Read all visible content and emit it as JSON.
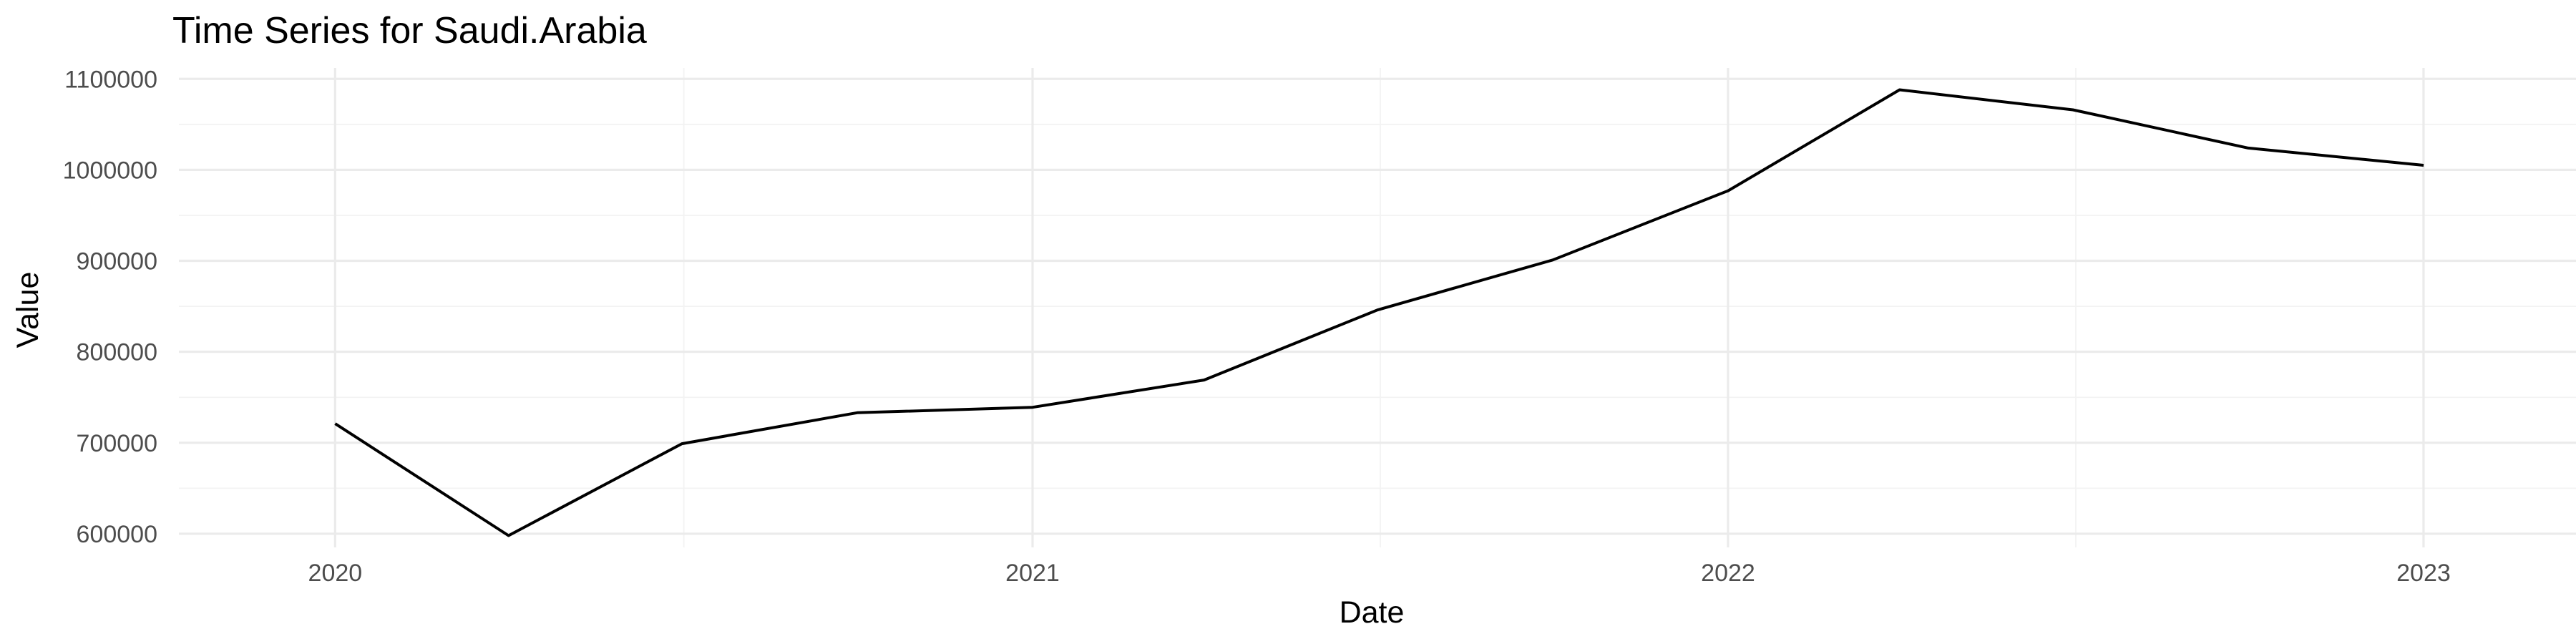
{
  "chart_data": {
    "type": "line",
    "title": "Time Series for Saudi.Arabia",
    "xlabel": "Date",
    "ylabel": "Value",
    "x_ticks": [
      "2020",
      "2021",
      "2022",
      "2023"
    ],
    "y_ticks": [
      600000,
      700000,
      800000,
      900000,
      1000000,
      1100000
    ],
    "xlim": [
      "2019-10-11",
      "2023-03-22"
    ],
    "ylim": [
      585000,
      1112000
    ],
    "grid": true,
    "legend": "none",
    "line_color": "#000000",
    "x": [
      "2020-01-01",
      "2020-04-01",
      "2020-07-01",
      "2020-10-01",
      "2021-01-01",
      "2021-04-01",
      "2021-07-01",
      "2021-10-01",
      "2022-01-01",
      "2022-04-01",
      "2022-07-01",
      "2022-10-01",
      "2023-01-01"
    ],
    "values": [
      721000,
      598000,
      699000,
      733000,
      739000,
      769000,
      846000,
      901000,
      977000,
      1088000,
      1066000,
      1024000,
      1005000
    ]
  }
}
